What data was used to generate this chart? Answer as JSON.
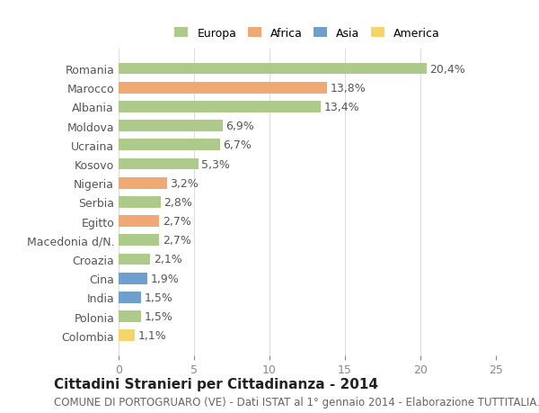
{
  "countries": [
    "Romania",
    "Marocco",
    "Albania",
    "Moldova",
    "Ucraina",
    "Kosovo",
    "Nigeria",
    "Serbia",
    "Egitto",
    "Macedonia d/N.",
    "Croazia",
    "Cina",
    "India",
    "Polonia",
    "Colombia"
  ],
  "values": [
    20.4,
    13.8,
    13.4,
    6.9,
    6.7,
    5.3,
    3.2,
    2.8,
    2.7,
    2.7,
    2.1,
    1.9,
    1.5,
    1.5,
    1.1
  ],
  "labels": [
    "20,4%",
    "13,8%",
    "13,4%",
    "6,9%",
    "6,7%",
    "5,3%",
    "3,2%",
    "2,8%",
    "2,7%",
    "2,7%",
    "2,1%",
    "1,9%",
    "1,5%",
    "1,5%",
    "1,1%"
  ],
  "continents": [
    "Europa",
    "Africa",
    "Europa",
    "Europa",
    "Europa",
    "Europa",
    "Africa",
    "Europa",
    "Africa",
    "Europa",
    "Europa",
    "Asia",
    "Asia",
    "Europa",
    "America"
  ],
  "colors": {
    "Europa": "#aeca8a",
    "Africa": "#f0a875",
    "Asia": "#6e9fcf",
    "America": "#f5d46a"
  },
  "legend_order": [
    "Europa",
    "Africa",
    "Asia",
    "America"
  ],
  "title": "Cittadini Stranieri per Cittadinanza - 2014",
  "subtitle": "COMUNE DI PORTOGRUARO (VE) - Dati ISTAT al 1° gennaio 2014 - Elaborazione TUTTITALIA.IT",
  "xlim": [
    0,
    25
  ],
  "xticks": [
    0,
    5,
    10,
    15,
    20,
    25
  ],
  "background_color": "#ffffff",
  "grid_color": "#dddddd",
  "bar_height": 0.6,
  "label_fontsize": 9,
  "tick_fontsize": 9,
  "title_fontsize": 11,
  "subtitle_fontsize": 8.5
}
